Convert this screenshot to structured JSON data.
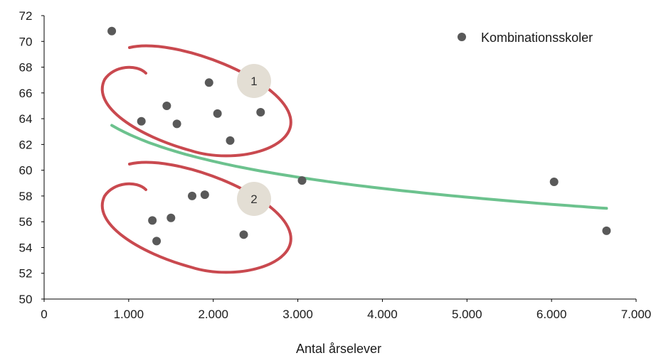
{
  "chart_data": {
    "type": "scatter",
    "xlabel": "Antal årselever",
    "ylabel": "",
    "xlim": [
      0,
      7000
    ],
    "ylim": [
      50,
      72
    ],
    "x_ticks": [
      "0",
      "1.000",
      "2.000",
      "3.000",
      "4.000",
      "5.000",
      "6.000",
      "7.000"
    ],
    "y_ticks": [
      "50",
      "52",
      "54",
      "56",
      "58",
      "60",
      "62",
      "64",
      "66",
      "68",
      "70",
      "72"
    ],
    "grid": false,
    "legend_position": "top-right",
    "series": [
      {
        "name": "Kombinationsskoler",
        "color": "#595959",
        "points": [
          {
            "x": 800,
            "y": 70.8
          },
          {
            "x": 1150,
            "y": 63.8
          },
          {
            "x": 1450,
            "y": 65.0
          },
          {
            "x": 1570,
            "y": 63.6
          },
          {
            "x": 1950,
            "y": 66.8
          },
          {
            "x": 2050,
            "y": 64.4
          },
          {
            "x": 2200,
            "y": 62.3
          },
          {
            "x": 2560,
            "y": 64.5
          },
          {
            "x": 3050,
            "y": 59.2
          },
          {
            "x": 1750,
            "y": 58.0
          },
          {
            "x": 1900,
            "y": 58.1
          },
          {
            "x": 1280,
            "y": 56.1
          },
          {
            "x": 1500,
            "y": 56.3
          },
          {
            "x": 1330,
            "y": 54.5
          },
          {
            "x": 2360,
            "y": 55.0
          },
          {
            "x": 6030,
            "y": 59.1
          },
          {
            "x": 6650,
            "y": 55.3
          }
        ]
      }
    ],
    "trendline": {
      "type": "logarithmic",
      "color": "#6cc28e",
      "x_range": [
        800,
        6650
      ],
      "a": 83.8,
      "b": -3.04
    },
    "annotations": [
      {
        "label": "1",
        "cluster": "upper",
        "ellipse_color": "#c9494f",
        "badge_color": "#e3ded4"
      },
      {
        "label": "2",
        "cluster": "lower",
        "ellipse_color": "#c9494f",
        "badge_color": "#e3ded4"
      }
    ]
  }
}
